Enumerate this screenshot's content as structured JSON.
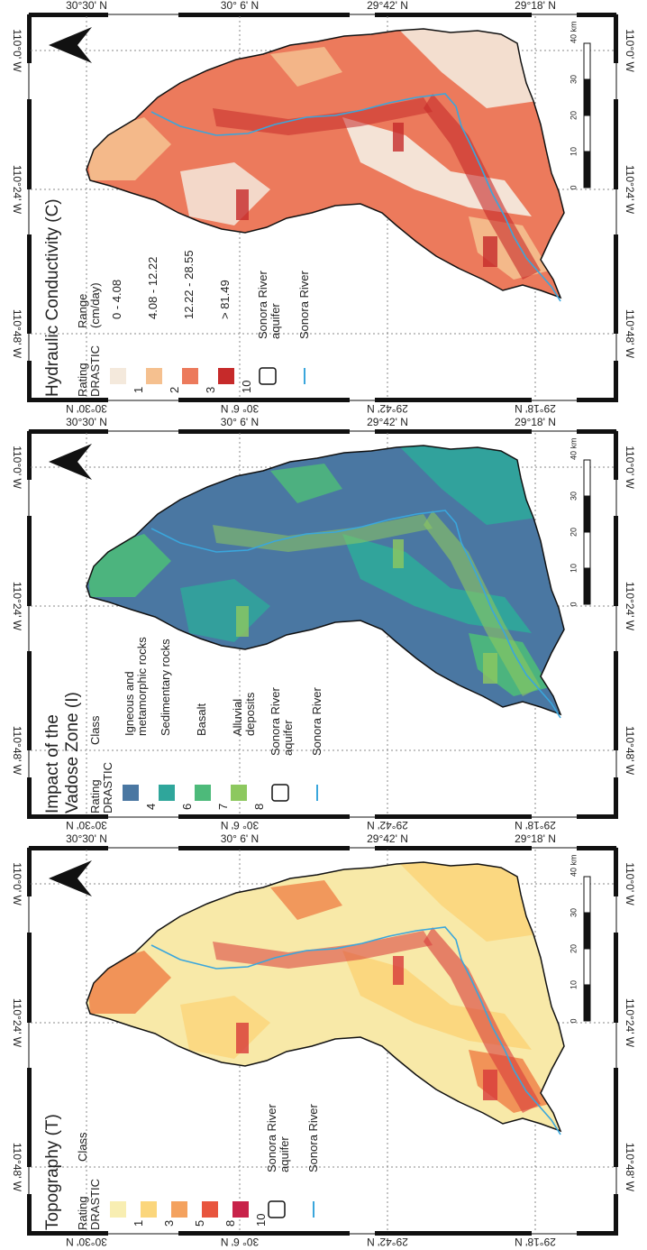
{
  "panels": [
    {
      "id": "c",
      "title": "Hydraulic Conductivity (C)",
      "legend_heading_left": "Rating\nDRASTIC",
      "legend_heading_right": "Range\n(cm/day)",
      "legend_items": [
        {
          "rating": "1",
          "label": "0 - 4.08",
          "color": "#f4e9dc"
        },
        {
          "rating": "2",
          "label": "4.08 - 12.22",
          "color": "#f5c08f"
        },
        {
          "rating": "3",
          "label": "12.22 - 28.55",
          "color": "#ec7a5c"
        },
        {
          "rating": "10",
          "label": "> 81.49",
          "color": "#c62a2a"
        }
      ],
      "aquifer_label": "Sonora River\naquifer",
      "river_label": "Sonora River",
      "lat_labels": [
        "30°30' N",
        "30° 6' N",
        "29°42' N",
        "29°18' N"
      ],
      "lon_labels": [
        "110°0' W",
        "110°24' W",
        "110°48' W"
      ],
      "scale_labels": [
        "0",
        "10",
        "20",
        "30",
        "40 km"
      ],
      "map_colors": {
        "base": "#ec7a5c",
        "light": "#f4e9dc",
        "mid": "#f5c08f",
        "dark": "#c62a2a"
      }
    },
    {
      "id": "i",
      "title": "Impact of the\nVadose Zone (I)",
      "legend_heading_left": "Rating\nDRASTIC",
      "legend_heading_right": "Class",
      "legend_items": [
        {
          "rating": "4",
          "label": "Igneous and\nmetamorphic rocks",
          "color": "#4a77a2"
        },
        {
          "rating": "6",
          "label": "Sedimentary rocks",
          "color": "#2fa69b"
        },
        {
          "rating": "7",
          "label": "Basalt",
          "color": "#4dba7a"
        },
        {
          "rating": "8",
          "label": "Alluvial\ndeposits",
          "color": "#8dc85f"
        }
      ],
      "aquifer_label": "Sonora River\naquifer",
      "river_label": "Sonora River",
      "lat_labels": [
        "30°30' N",
        "30° 6' N",
        "29°42' N",
        "29°18' N"
      ],
      "lon_labels": [
        "110°0' W",
        "110°24' W",
        "110°48' W"
      ],
      "scale_labels": [
        "0",
        "10",
        "20",
        "30",
        "40 km"
      ],
      "map_colors": {
        "base": "#4a77a2",
        "light": "#2fa69b",
        "mid": "#4dba7a",
        "dark": "#8dc85f"
      }
    },
    {
      "id": "t",
      "title": "Topography (T)",
      "legend_heading_left": "Rating\nDRASTIC",
      "legend_heading_right": "Class",
      "legend_items": [
        {
          "rating": "1",
          "label": "",
          "color": "#f8eeb2"
        },
        {
          "rating": "3",
          "label": "",
          "color": "#fbd67c"
        },
        {
          "rating": "5",
          "label": "",
          "color": "#f4a25f"
        },
        {
          "rating": "8",
          "label": "",
          "color": "#e8553e"
        },
        {
          "rating": "10",
          "label": "",
          "color": "#c8234a"
        }
      ],
      "aquifer_label": "Sonora River\naquifer",
      "river_label": "Sonora River",
      "lat_labels": [
        "30°30' N",
        "30° 6' N",
        "29°42' N",
        "29°18' N"
      ],
      "lon_labels": [
        "110°0' W",
        "110°24' W",
        "110°48' W"
      ],
      "scale_labels": [
        "0",
        "10",
        "20",
        "30",
        "40 km"
      ],
      "map_colors": {
        "base": "#f8e9a8",
        "light": "#fbd67c",
        "mid": "#f0894f",
        "dark": "#d83a3a"
      }
    }
  ],
  "colors": {
    "river": "#3aa6dc",
    "frame": "#111111",
    "grid": "#888888"
  }
}
